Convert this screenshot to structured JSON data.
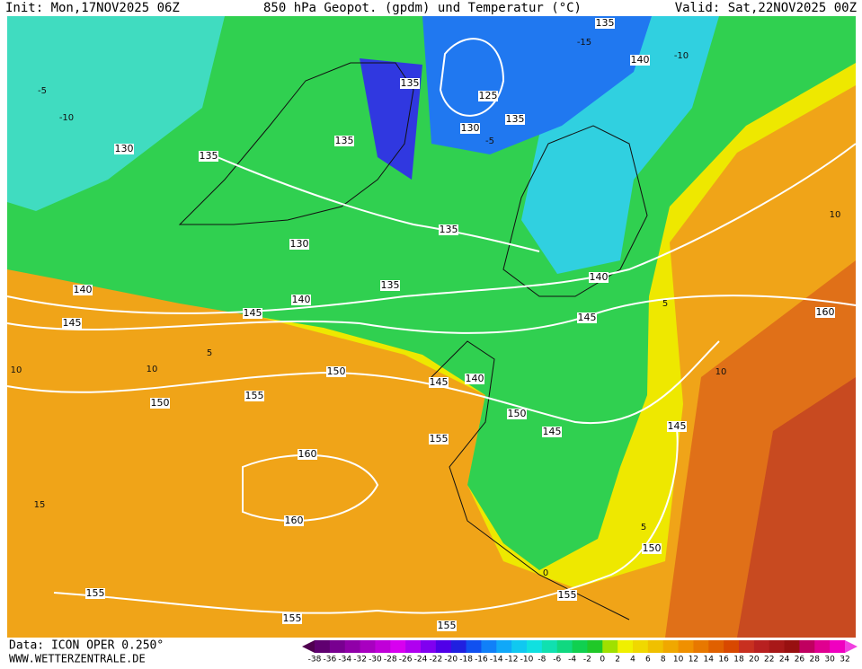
{
  "header": {
    "init": "Init: Mon,17NOV2025 06Z",
    "title": "850 hPa Geopot. (gpdm) und Temperatur (°C)",
    "valid": "Valid: Sat,22NOV2025 00Z"
  },
  "footer": {
    "data": "Data: ICON OPER 0.250°",
    "site": "WWW.WETTERZENTRALE.DE"
  },
  "colorbar": {
    "ticks": [
      -38,
      -36,
      -34,
      -32,
      -30,
      -28,
      -26,
      -24,
      -22,
      -20,
      -18,
      -16,
      -14,
      -12,
      -10,
      -8,
      -6,
      -4,
      -2,
      0,
      2,
      4,
      6,
      8,
      10,
      12,
      14,
      16,
      18,
      20,
      22,
      24,
      26,
      28,
      30,
      32
    ],
    "colors": [
      "#500050",
      "#600070",
      "#780090",
      "#9000a8",
      "#a800c0",
      "#c000d8",
      "#d800f0",
      "#b000f0",
      "#8000f0",
      "#5000e8",
      "#2020e0",
      "#1050f0",
      "#1080f8",
      "#10a8f8",
      "#10c8f0",
      "#10e0e0",
      "#10e0b0",
      "#10d880",
      "#10d050",
      "#20c828",
      "#a0e000",
      "#f0f000",
      "#f0d800",
      "#f0c000",
      "#f0a800",
      "#f09000",
      "#e87800",
      "#e06000",
      "#d84800",
      "#c83020",
      "#b82020",
      "#a81818",
      "#981010",
      "#c00060",
      "#e00090",
      "#f000c0",
      "#f040e0"
    ]
  },
  "geopotential_labels": [
    135,
    140,
    135,
    125,
    135,
    130,
    135,
    130,
    135,
    135,
    130,
    140,
    140,
    135,
    140,
    145,
    145,
    160,
    145,
    150,
    145,
    140,
    155,
    150,
    150,
    145,
    145,
    155,
    160,
    160,
    150,
    155,
    155,
    155,
    155
  ],
  "temperature_labels": [
    -10,
    -5,
    -15,
    -10,
    5,
    10,
    10,
    15,
    0,
    5,
    10,
    10,
    -5,
    5
  ]
}
